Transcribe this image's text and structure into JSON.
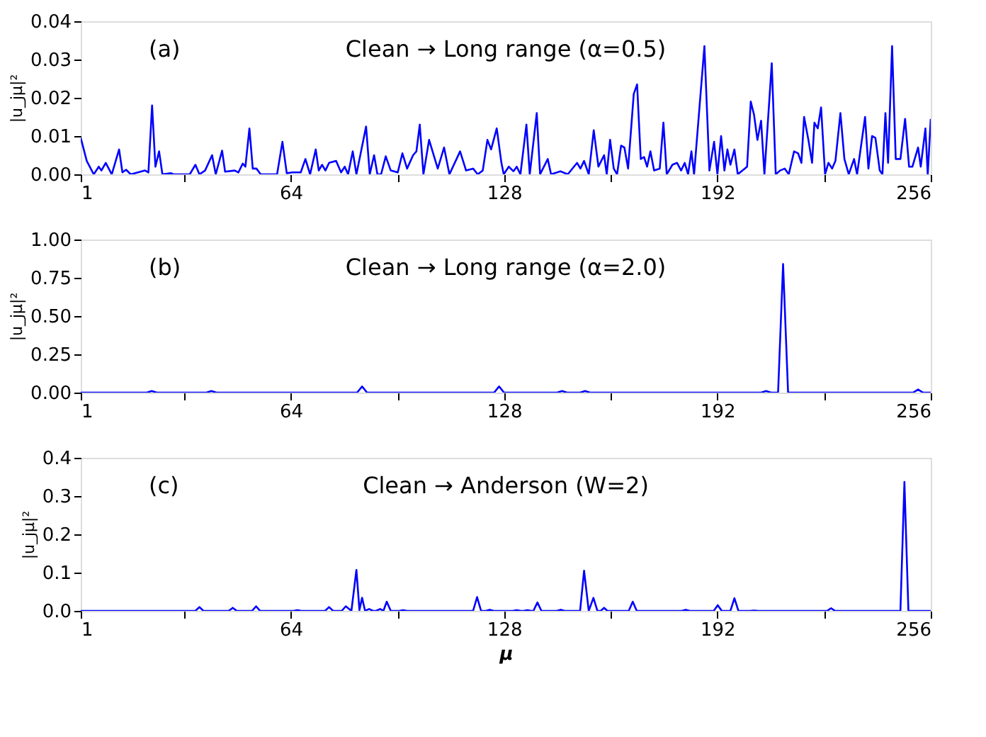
{
  "chart_data": [
    {
      "type": "line",
      "title": "Clean → Long range (α=0.5)",
      "annotations": [
        "(a)"
      ],
      "ylabel": "|u_jμ|²",
      "color": "#0000ff",
      "grid": false,
      "marker": "none",
      "line_style": "solid",
      "x": [
        1,
        2.8,
        4.9,
        6.4,
        7.2,
        8.5,
        10.3,
        12.5,
        13.5,
        14.6,
        16.0,
        20.3,
        21.3,
        22.4,
        23.4,
        24.5,
        25.5,
        28.1,
        28.8,
        33.7,
        35.4,
        36.6,
        38.3,
        40.4,
        41.5,
        43.4,
        44.3,
        47.2,
        48.3,
        49.6,
        50.4,
        51.6,
        52.6,
        53.7,
        55.0,
        59.9,
        61.5,
        62.8,
        64.5,
        67.0,
        68.4,
        69.8,
        71.5,
        72.4,
        73.4,
        74.4,
        75.5,
        77.6,
        79.1,
        80.2,
        81.2,
        82.6,
        83.7,
        86.6,
        87.7,
        89.0,
        90.0,
        91.1,
        92.5,
        94.0,
        96.1,
        97.5,
        98.9,
        100.7,
        101.7,
        102.7,
        103.8,
        105.5,
        108.1,
        110.0,
        111.6,
        114.8,
        116.6,
        118.7,
        120.1,
        121.6,
        123.0,
        124.1,
        125.8,
        127.2,
        127.9,
        129.4,
        130.8,
        131.8,
        132.9,
        134.7,
        135.7,
        137.8,
        138.8,
        141.1,
        142.1,
        144.9,
        147.1,
        149.9,
        150.9,
        152.0,
        153.4,
        154.9,
        156.3,
        158.0,
        158.8,
        159.8,
        160.9,
        161.9,
        163.1,
        164.1,
        165.2,
        166.9,
        167.9,
        169.0,
        170.0,
        170.9,
        171.9,
        173.0,
        174.7,
        175.8,
        176.8,
        178.5,
        179.9,
        181.1,
        182.2,
        183.2,
        184.2,
        185.0,
        188.1,
        189.6,
        191.0,
        192.0,
        193.1,
        194.1,
        195.0,
        195.9,
        197.1,
        198.1,
        200.9,
        202.0,
        203.0,
        204.0,
        205.1,
        206.1,
        208.3,
        209.5,
        210.8,
        212.2,
        213.4,
        215.0,
        216.2,
        217.2,
        218.0,
        219.3,
        220.4,
        221.1,
        222.1,
        223.1,
        224.3,
        225.3,
        226.4,
        227.4,
        228.9,
        230.1,
        231.4,
        233.0,
        233.9,
        236.3,
        237.3,
        238.4,
        239.4,
        240.7,
        241.5,
        242.4,
        243.2,
        244.4,
        245.5,
        246.9,
        248.3,
        249.5,
        250.5,
        252.2,
        253.0,
        254.4,
        255.1,
        256
      ],
      "values": [
        0.0095,
        0.0035,
        0,
        0.002,
        0.001,
        0.003,
        0,
        0.0065,
        0.0005,
        0.0012,
        0,
        0.001,
        0.0005,
        0.018,
        0.002,
        0.006,
        0,
        0.0003,
        0,
        0,
        0.0025,
        0,
        0.001,
        0.005,
        0,
        0.0062,
        0.0007,
        0.001,
        0.0005,
        0.0028,
        0.002,
        0.012,
        0.0015,
        0.0015,
        0,
        0,
        0.0085,
        0.0003,
        0.0005,
        0.0005,
        0.004,
        0,
        0.0065,
        0.001,
        0.0025,
        0.001,
        0.003,
        0.0035,
        0.0005,
        0.002,
        0,
        0.006,
        0,
        0.0125,
        0,
        0.005,
        0,
        0,
        0.0047,
        0.001,
        0.0005,
        0.0055,
        0.0015,
        0.005,
        0.006,
        0.013,
        0,
        0.009,
        0.0015,
        0.007,
        0,
        0.006,
        0.001,
        0.0015,
        0,
        0.001,
        0.009,
        0.0065,
        0.012,
        0.003,
        0,
        0.002,
        0.0008,
        0.002,
        0,
        0.013,
        0,
        0.016,
        0,
        0.004,
        0,
        0.0008,
        0,
        0.003,
        0.0015,
        0.0035,
        0,
        0.0115,
        0.002,
        0.005,
        0,
        0.009,
        0.0015,
        0,
        0.0075,
        0.007,
        0.0015,
        0.021,
        0.0235,
        0.004,
        0.0045,
        0.002,
        0.006,
        0.001,
        0.0015,
        0.0135,
        0,
        0.0025,
        0.003,
        0.001,
        0.003,
        0,
        0.006,
        0,
        0.0335,
        0.001,
        0.0085,
        0,
        0.01,
        0.001,
        0.0065,
        0.0025,
        0.0065,
        0,
        0.002,
        0.019,
        0.0155,
        0.009,
        0.014,
        0,
        0.029,
        0,
        0.001,
        0.0015,
        0,
        0.006,
        0.0055,
        0.003,
        0.015,
        0.009,
        0.003,
        0.0135,
        0.012,
        0.0175,
        0,
        0.003,
        0.0015,
        0.0035,
        0.016,
        0.004,
        0,
        0.004,
        0,
        0.015,
        0.0015,
        0.01,
        0.0095,
        0.001,
        0,
        0.016,
        0.003,
        0.0335,
        0.004,
        0.004,
        0.0145,
        0.002,
        0.002,
        0.007,
        0.002,
        0.012,
        0,
        0.0145
      ],
      "xlim": [
        1,
        256
      ],
      "xticks": [
        1,
        {
          "value": 32,
          "label": null
        },
        64,
        {
          "value": 96,
          "label": null
        },
        128,
        {
          "value": 160,
          "label": null
        },
        192,
        {
          "value": 224,
          "label": null
        },
        256
      ],
      "ylim": [
        0,
        0.04
      ],
      "yticks": [
        {
          "value": 0,
          "label": "0.00"
        },
        {
          "value": 0.01,
          "label": "0.01"
        },
        {
          "value": 0.02,
          "label": "0.02"
        },
        {
          "value": 0.03,
          "label": "0.03"
        },
        {
          "value": 0.04,
          "label": "0.04"
        }
      ]
    },
    {
      "type": "line",
      "title": "Clean → Long range (α=2.0)",
      "annotations": [
        "(b)"
      ],
      "ylabel": "|u_jμ|²",
      "color": "#0000ff",
      "grid": false,
      "marker": "none",
      "line_style": "solid",
      "x": [
        1,
        20.8,
        22.3,
        23.8,
        38.7,
        40.2,
        41.7,
        83.9,
        85.4,
        86.9,
        125,
        126.5,
        128,
        143.9,
        145.4,
        146.9,
        150.8,
        152.3,
        153.8,
        205.1,
        206.6,
        208.1,
        210.2,
        211.7,
        213.2,
        250.7,
        252.2,
        253.7,
        256
      ],
      "values": [
        0,
        0,
        0.01,
        0,
        0,
        0.01,
        0,
        0,
        0.04,
        0,
        0,
        0.04,
        0,
        0,
        0.01,
        0,
        0,
        0.01,
        0,
        0,
        0.01,
        0,
        0,
        0.84,
        0,
        0,
        0.02,
        0,
        0
      ],
      "xlim": [
        1,
        256
      ],
      "xticks": [
        1,
        {
          "value": 32,
          "label": null
        },
        64,
        {
          "value": 96,
          "label": null
        },
        128,
        {
          "value": 160,
          "label": null
        },
        192,
        {
          "value": 224,
          "label": null
        },
        256
      ],
      "ylim": [
        0,
        1
      ],
      "yticks": [
        {
          "value": 0,
          "label": "0.00"
        },
        {
          "value": 0.25,
          "label": "0.25"
        },
        {
          "value": 0.5,
          "label": "0.50"
        },
        {
          "value": 0.75,
          "label": "0.75"
        },
        {
          "value": 1,
          "label": "1.00"
        }
      ]
    },
    {
      "type": "line",
      "title": "Clean → Anderson (W=2)",
      "annotations": [
        "(c)"
      ],
      "ylabel": "|u_jμ|²",
      "xlabel": "μ",
      "color": "#0000ff",
      "grid": false,
      "marker": "none",
      "line_style": "solid",
      "x": [
        1,
        35.4,
        36.6,
        37.8,
        45.4,
        46.6,
        47.8,
        52.4,
        53.6,
        54.8,
        64.8,
        66,
        67.2,
        74.3,
        75.5,
        76.7,
        79.3,
        80.5,
        82.2,
        83.7,
        84.6,
        85.4,
        86.3,
        87.5,
        88.7,
        89.6,
        90.8,
        91.8,
        92.8,
        94,
        96.5,
        97.7,
        98.9,
        118.7,
        119.9,
        121.1,
        122.5,
        123.7,
        124.9,
        130.6,
        131.8,
        133,
        133.8,
        135,
        136.2,
        136.8,
        138,
        139.2,
        143.8,
        145,
        146.2,
        150.8,
        152,
        153.4,
        154.8,
        156,
        157,
        158,
        159,
        165.4,
        166.6,
        167.8,
        181.3,
        182.5,
        183.7,
        190.9,
        192.1,
        193.3,
        195.9,
        197.1,
        198.3,
        201.8,
        203,
        204.2,
        224.9,
        226.1,
        227.3,
        246.9,
        248.1,
        249.3,
        256
      ],
      "values": [
        0,
        0,
        0.01,
        0,
        0,
        0.008,
        0,
        0,
        0.012,
        0,
        0,
        0.002,
        0,
        0,
        0.01,
        0,
        0,
        0.012,
        0,
        0.107,
        0.002,
        0.034,
        0,
        0.005,
        0,
        0,
        0.005,
        0,
        0.024,
        0,
        0,
        0.002,
        0,
        0,
        0.036,
        0,
        0,
        0.003,
        0,
        0,
        0.002,
        0,
        0,
        0.002,
        0,
        0,
        0.022,
        0,
        0,
        0.003,
        0,
        0,
        0.105,
        0,
        0.034,
        0,
        0,
        0.008,
        0,
        0,
        0.024,
        0,
        0,
        0.003,
        0,
        0,
        0.015,
        0,
        0,
        0.033,
        0,
        0,
        0.001,
        0,
        0,
        0.007,
        0,
        0,
        0.337,
        0,
        0
      ],
      "xlim": [
        1,
        256
      ],
      "xticks": [
        1,
        {
          "value": 32,
          "label": null
        },
        64,
        {
          "value": 96,
          "label": null
        },
        128,
        {
          "value": 160,
          "label": null
        },
        192,
        {
          "value": 224,
          "label": null
        },
        256
      ],
      "ylim": [
        0,
        0.4
      ],
      "yticks": [
        {
          "value": 0,
          "label": "0.0"
        },
        {
          "value": 0.1,
          "label": "0.1"
        },
        {
          "value": 0.2,
          "label": "0.2"
        },
        {
          "value": 0.3,
          "label": "0.3"
        },
        {
          "value": 0.4,
          "label": "0.4"
        }
      ]
    }
  ]
}
